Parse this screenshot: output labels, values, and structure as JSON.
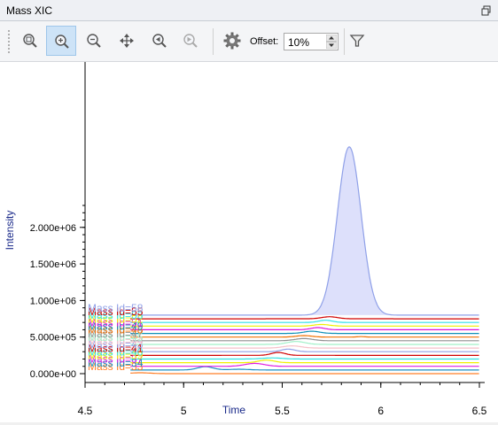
{
  "window": {
    "title": "Mass XIC"
  },
  "toolbar": {
    "offset_label": "Offset:",
    "offset_value": "10%",
    "buttons": [
      "zoom-fit",
      "zoom-in",
      "zoom-out",
      "pan",
      "zoom-back",
      "zoom-forward",
      "settings",
      "filter"
    ]
  },
  "chart_data": {
    "type": "line",
    "xlabel": "Time",
    "ylabel": "Intensity",
    "xlim": [
      4.5,
      6.5
    ],
    "x_ticks": [
      "4.5",
      "5",
      "5.5",
      "6",
      "6.5"
    ],
    "y_ticks": [
      "0.000e+00",
      "5.000e+05",
      "1.000e+06",
      "1.500e+06",
      "2.000e+06"
    ],
    "series": [
      {
        "name": "Mass Id=33",
        "color": "#ff7f27",
        "baseline": 0,
        "peaks": [
          [
            4.78,
            12000,
            0.05
          ]
        ]
      },
      {
        "name": "Mass Id=34",
        "color": "#1a8fc4",
        "baseline": 50000,
        "peaks": [
          [
            5.11,
            45000,
            0.04
          ],
          [
            5.28,
            10000,
            0.05
          ]
        ]
      },
      {
        "name": "Mass Id=37",
        "color": "#e020e0",
        "baseline": 100000,
        "peaks": [
          [
            5.36,
            40000,
            0.05
          ]
        ]
      },
      {
        "name": "Mass Id=39",
        "color": "#f0f000",
        "baseline": 150000,
        "peaks": [
          [
            5.42,
            35000,
            0.04
          ]
        ]
      },
      {
        "name": "Mass Id=40",
        "color": "#30e0e0",
        "baseline": 200000,
        "peaks": [
          [
            5.45,
            15000,
            0.05
          ]
        ]
      },
      {
        "name": "Mass Id=41",
        "color": "#d00000",
        "baseline": 250000,
        "peaks": [
          [
            5.48,
            40000,
            0.035
          ]
        ]
      },
      {
        "name": "Mass Id=43",
        "color": "#8fa0e8",
        "baseline": 300000,
        "peaks": [
          [
            5.53,
            35000,
            0.035
          ]
        ]
      },
      {
        "name": "Mass Id=44",
        "color": "#f4c0c8",
        "baseline": 350000,
        "peaks": [
          [
            5.55,
            30000,
            0.045
          ]
        ]
      },
      {
        "name": "Mass Id=45",
        "color": "#a0f0c8",
        "baseline": 400000,
        "peaks": [
          [
            5.57,
            40000,
            0.045
          ]
        ]
      },
      {
        "name": "Mass Id=47",
        "color": "#909090",
        "baseline": 450000,
        "peaks": [
          [
            5.61,
            30000,
            0.045
          ]
        ]
      },
      {
        "name": "Mass Id=48",
        "color": "#f07000",
        "baseline": 500000,
        "peaks": [
          [
            5.61,
            20000,
            0.04
          ],
          [
            5.9,
            6000,
            0.02
          ]
        ]
      },
      {
        "name": "Mass Id=49",
        "color": "#1090b8",
        "baseline": 550000,
        "peaks": [
          [
            5.65,
            30000,
            0.04
          ]
        ]
      },
      {
        "name": "Mass Id=51",
        "color": "#e010d8",
        "baseline": 600000,
        "peaks": [
          [
            5.68,
            30000,
            0.035
          ]
        ]
      },
      {
        "name": "Mass Id=52",
        "color": "#f0f000",
        "baseline": 650000,
        "peaks": [
          [
            5.7,
            22000,
            0.04
          ]
        ]
      },
      {
        "name": "Mass Id=53",
        "color": "#30e0e8",
        "baseline": 700000,
        "peaks": [
          [
            5.72,
            30000,
            0.035
          ]
        ]
      },
      {
        "name": "Mass Id=55",
        "color": "#d00000",
        "baseline": 750000,
        "peaks": [
          [
            5.74,
            28000,
            0.04
          ]
        ]
      },
      {
        "name": "Mass Id=58",
        "color": "#8fa0e8",
        "baseline": 800000,
        "peaks": [
          [
            5.84,
            2300000,
            0.06
          ]
        ],
        "fill": "#dde0fb"
      }
    ]
  }
}
